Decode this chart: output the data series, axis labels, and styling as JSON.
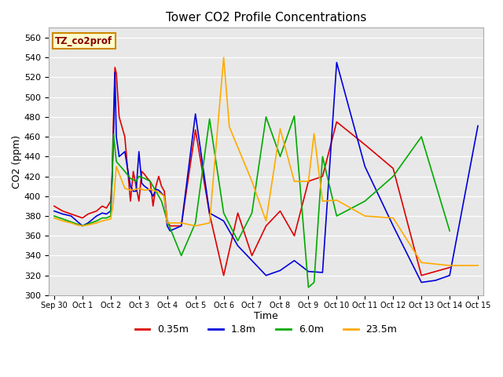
{
  "title": "Tower CO2 Profile Concentrations",
  "xlabel": "Time",
  "ylabel": "CO2 (ppm)",
  "ylim": [
    300,
    570
  ],
  "yticks": [
    300,
    320,
    340,
    360,
    380,
    400,
    420,
    440,
    460,
    480,
    500,
    520,
    540,
    560
  ],
  "fig_bg_color": "#ffffff",
  "plot_bg_color": "#e8e8e8",
  "watermark": "TZ_co2prof",
  "series": [
    {
      "label": "0.35m",
      "color": "#dd0000",
      "x": [
        0,
        0.3,
        0.6,
        0.8,
        1.0,
        1.2,
        1.5,
        1.7,
        1.85,
        2.0,
        2.05,
        2.1,
        2.15,
        2.2,
        2.3,
        2.5,
        2.7,
        2.8,
        2.9,
        3.0,
        3.1,
        3.2,
        3.3,
        3.4,
        3.5,
        3.6,
        3.65,
        3.7,
        3.8,
        3.9,
        4.0,
        4.1,
        4.5,
        5.0,
        5.5,
        6.0,
        6.5,
        7.0,
        7.5,
        8.0,
        8.5,
        9.0,
        9.5,
        10.0,
        11.0,
        12.0,
        13.0,
        14.0
      ],
      "y": [
        390,
        385,
        382,
        380,
        378,
        382,
        385,
        390,
        388,
        395,
        420,
        478,
        530,
        524,
        480,
        460,
        395,
        425,
        410,
        395,
        425,
        422,
        418,
        415,
        390,
        410,
        415,
        420,
        410,
        405,
        375,
        370,
        370,
        467,
        382,
        320,
        383,
        340,
        370,
        385,
        360,
        415,
        420,
        475,
        452,
        428,
        320,
        328
      ]
    },
    {
      "label": "1.8m",
      "color": "#0000dd",
      "x": [
        0,
        0.3,
        0.6,
        0.8,
        1.0,
        1.2,
        1.5,
        1.7,
        1.85,
        2.0,
        2.05,
        2.1,
        2.15,
        2.2,
        2.3,
        2.5,
        2.7,
        2.8,
        2.9,
        3.0,
        3.1,
        3.2,
        3.3,
        3.4,
        3.5,
        3.6,
        3.7,
        3.8,
        3.9,
        4.0,
        4.1,
        4.5,
        5.0,
        5.5,
        6.0,
        6.5,
        7.0,
        7.5,
        8.0,
        8.5,
        9.0,
        9.5,
        10.0,
        11.0,
        12.0,
        13.0,
        13.5,
        14.0,
        15.0
      ],
      "y": [
        385,
        382,
        380,
        375,
        370,
        373,
        380,
        383,
        382,
        385,
        415,
        460,
        525,
        460,
        440,
        445,
        410,
        405,
        405,
        445,
        413,
        410,
        408,
        405,
        400,
        407,
        406,
        403,
        400,
        370,
        365,
        370,
        483,
        383,
        375,
        350,
        335,
        320,
        325,
        335,
        324,
        323,
        535,
        430,
        370,
        313,
        315,
        320,
        471
      ]
    },
    {
      "label": "6.0m",
      "color": "#00aa00",
      "x": [
        0,
        0.3,
        0.6,
        0.8,
        1.0,
        1.2,
        1.5,
        1.7,
        1.85,
        2.0,
        2.05,
        2.1,
        2.2,
        2.5,
        2.7,
        2.9,
        3.0,
        3.2,
        3.4,
        3.5,
        3.6,
        3.7,
        3.8,
        3.9,
        4.0,
        4.5,
        5.0,
        5.5,
        6.0,
        6.5,
        7.0,
        7.5,
        8.0,
        8.5,
        9.0,
        9.2,
        9.5,
        10.0,
        11.0,
        12.0,
        13.0,
        14.0
      ],
      "y": [
        380,
        377,
        374,
        372,
        370,
        372,
        375,
        378,
        378,
        380,
        420,
        463,
        435,
        425,
        418,
        415,
        420,
        418,
        415,
        410,
        405,
        400,
        395,
        385,
        375,
        340,
        373,
        478,
        383,
        355,
        383,
        480,
        440,
        481,
        308,
        313,
        440,
        380,
        395,
        420,
        460,
        365
      ]
    },
    {
      "label": "23.5m",
      "color": "#ffaa00",
      "x": [
        0,
        0.3,
        0.6,
        0.8,
        1.0,
        1.2,
        1.5,
        1.7,
        1.85,
        2.0,
        2.1,
        2.2,
        2.5,
        2.7,
        2.9,
        3.0,
        3.2,
        3.4,
        3.5,
        3.6,
        3.7,
        3.8,
        3.9,
        4.0,
        4.5,
        5.0,
        5.5,
        6.0,
        6.2,
        7.0,
        7.5,
        8.0,
        8.5,
        9.0,
        9.2,
        9.5,
        10.0,
        11.0,
        12.0,
        13.0,
        14.0,
        15.0
      ],
      "y": [
        378,
        375,
        373,
        371,
        370,
        371,
        373,
        375,
        376,
        377,
        395,
        430,
        408,
        406,
        407,
        408,
        406,
        407,
        406,
        405,
        404,
        402,
        400,
        373,
        373,
        370,
        373,
        540,
        470,
        415,
        375,
        468,
        415,
        415,
        463,
        395,
        396,
        380,
        378,
        333,
        330,
        330
      ]
    }
  ],
  "xtick_positions": [
    0,
    1,
    2,
    3,
    4,
    5,
    6,
    7,
    8,
    9,
    10,
    11,
    12,
    13,
    14,
    15
  ],
  "xtick_labels": [
    "Sep 30",
    "Oct 1",
    "Oct 2",
    "Oct 3",
    "Oct 4",
    "Oct 5",
    "Oct 6",
    "Oct 7",
    "Oct 8",
    "Oct 9",
    "Oct 10",
    "Oct 11",
    "Oct 12",
    "Oct 13",
    "Oct 14",
    "Oct 15"
  ]
}
